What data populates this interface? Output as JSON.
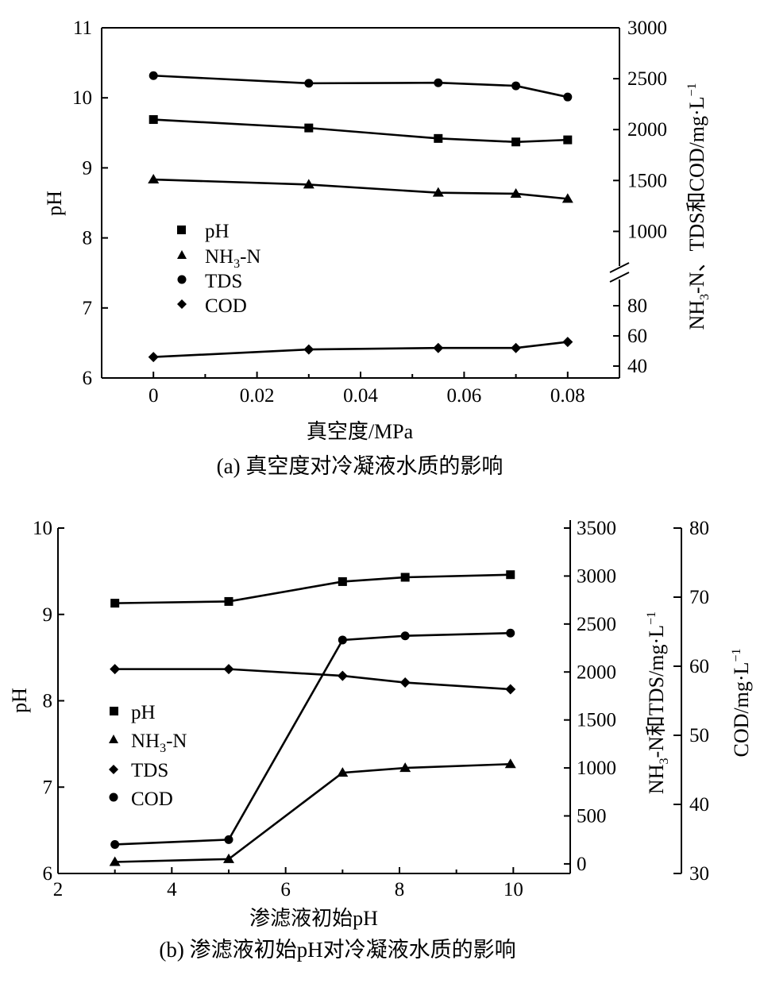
{
  "chart_data": [
    {
      "type": "line",
      "title": "(a) 真空度对冷凝液水质的影响",
      "xlabel": "真空度/MPa",
      "ylabel": "pH",
      "ylabel_right": "NH3-N、TDS和COD/mg·L−1",
      "xlim": [
        -0.01,
        0.09
      ],
      "ylim": [
        6,
        11
      ],
      "xticks": [
        "0",
        "0.02",
        "0.04",
        "0.06",
        "0.08"
      ],
      "yticks": [
        "6",
        "7",
        "8",
        "9",
        "10",
        "11"
      ],
      "right_upper_ticks": [
        "1000",
        "1500",
        "2000",
        "2500",
        "3000"
      ],
      "right_lower_ticks": [
        "40",
        "60",
        "80"
      ],
      "right_upper_range": [
        500,
        3000
      ],
      "right_lower_range": [
        30,
        100
      ],
      "x": [
        0,
        0.03,
        0.055,
        0.07,
        0.08
      ],
      "legend": [
        "pH",
        "NH3-N",
        "TDS",
        "COD"
      ],
      "series": [
        {
          "name": "pH",
          "marker": "square",
          "axis": "left",
          "values": [
            9.69,
            9.57,
            9.42,
            9.37,
            9.4
          ]
        },
        {
          "name": "NH3-N",
          "marker": "triangle",
          "axis": "right_upper",
          "values": [
            1510,
            1460,
            1380,
            1370,
            1320
          ]
        },
        {
          "name": "TDS",
          "marker": "circle",
          "axis": "right_upper",
          "values": [
            2530,
            2455,
            2460,
            2430,
            2320
          ]
        },
        {
          "name": "COD",
          "marker": "diamond",
          "axis": "right_lower",
          "values": [
            46,
            51,
            52,
            52,
            56
          ]
        }
      ]
    },
    {
      "type": "line",
      "title": "(b) 渗滤液初始pH对冷凝液水质的影响",
      "xlabel": "渗滤液初始pH",
      "ylabel": "pH",
      "ylabel_right": "NH3-N和TDS/mg·L−1",
      "ylabel_right2": "COD/mg·L−1",
      "xlim": [
        2,
        11
      ],
      "ylim": [
        6,
        10
      ],
      "xticks": [
        "2",
        "4",
        "6",
        "8",
        "10"
      ],
      "yticks": [
        "6",
        "7",
        "8",
        "9",
        "10"
      ],
      "right_ticks": [
        "0",
        "500",
        "1000",
        "1500",
        "2000",
        "2500",
        "3000",
        "3500"
      ],
      "right_range": [
        -100,
        3500
      ],
      "right2_ticks": [
        "30",
        "40",
        "50",
        "60",
        "70",
        "80"
      ],
      "right2_range": [
        30,
        80
      ],
      "x": [
        3,
        5,
        7,
        8.1,
        9.95
      ],
      "legend": [
        "pH",
        "NH3-N",
        "TDS",
        "COD"
      ],
      "series": [
        {
          "name": "pH",
          "marker": "square",
          "axis": "left",
          "values": [
            9.13,
            9.15,
            9.38,
            9.43,
            9.46
          ]
        },
        {
          "name": "NH3-N",
          "marker": "triangle",
          "axis": "right",
          "values": [
            20,
            50,
            950,
            1000,
            1040
          ]
        },
        {
          "name": "TDS",
          "marker": "diamond",
          "axis": "right",
          "values": [
            2030,
            2030,
            1960,
            1890,
            1820
          ]
        },
        {
          "name": "COD",
          "marker": "circle",
          "axis": "right2",
          "values": [
            34.2,
            34.9,
            63.8,
            64.4,
            64.8
          ]
        }
      ]
    }
  ]
}
